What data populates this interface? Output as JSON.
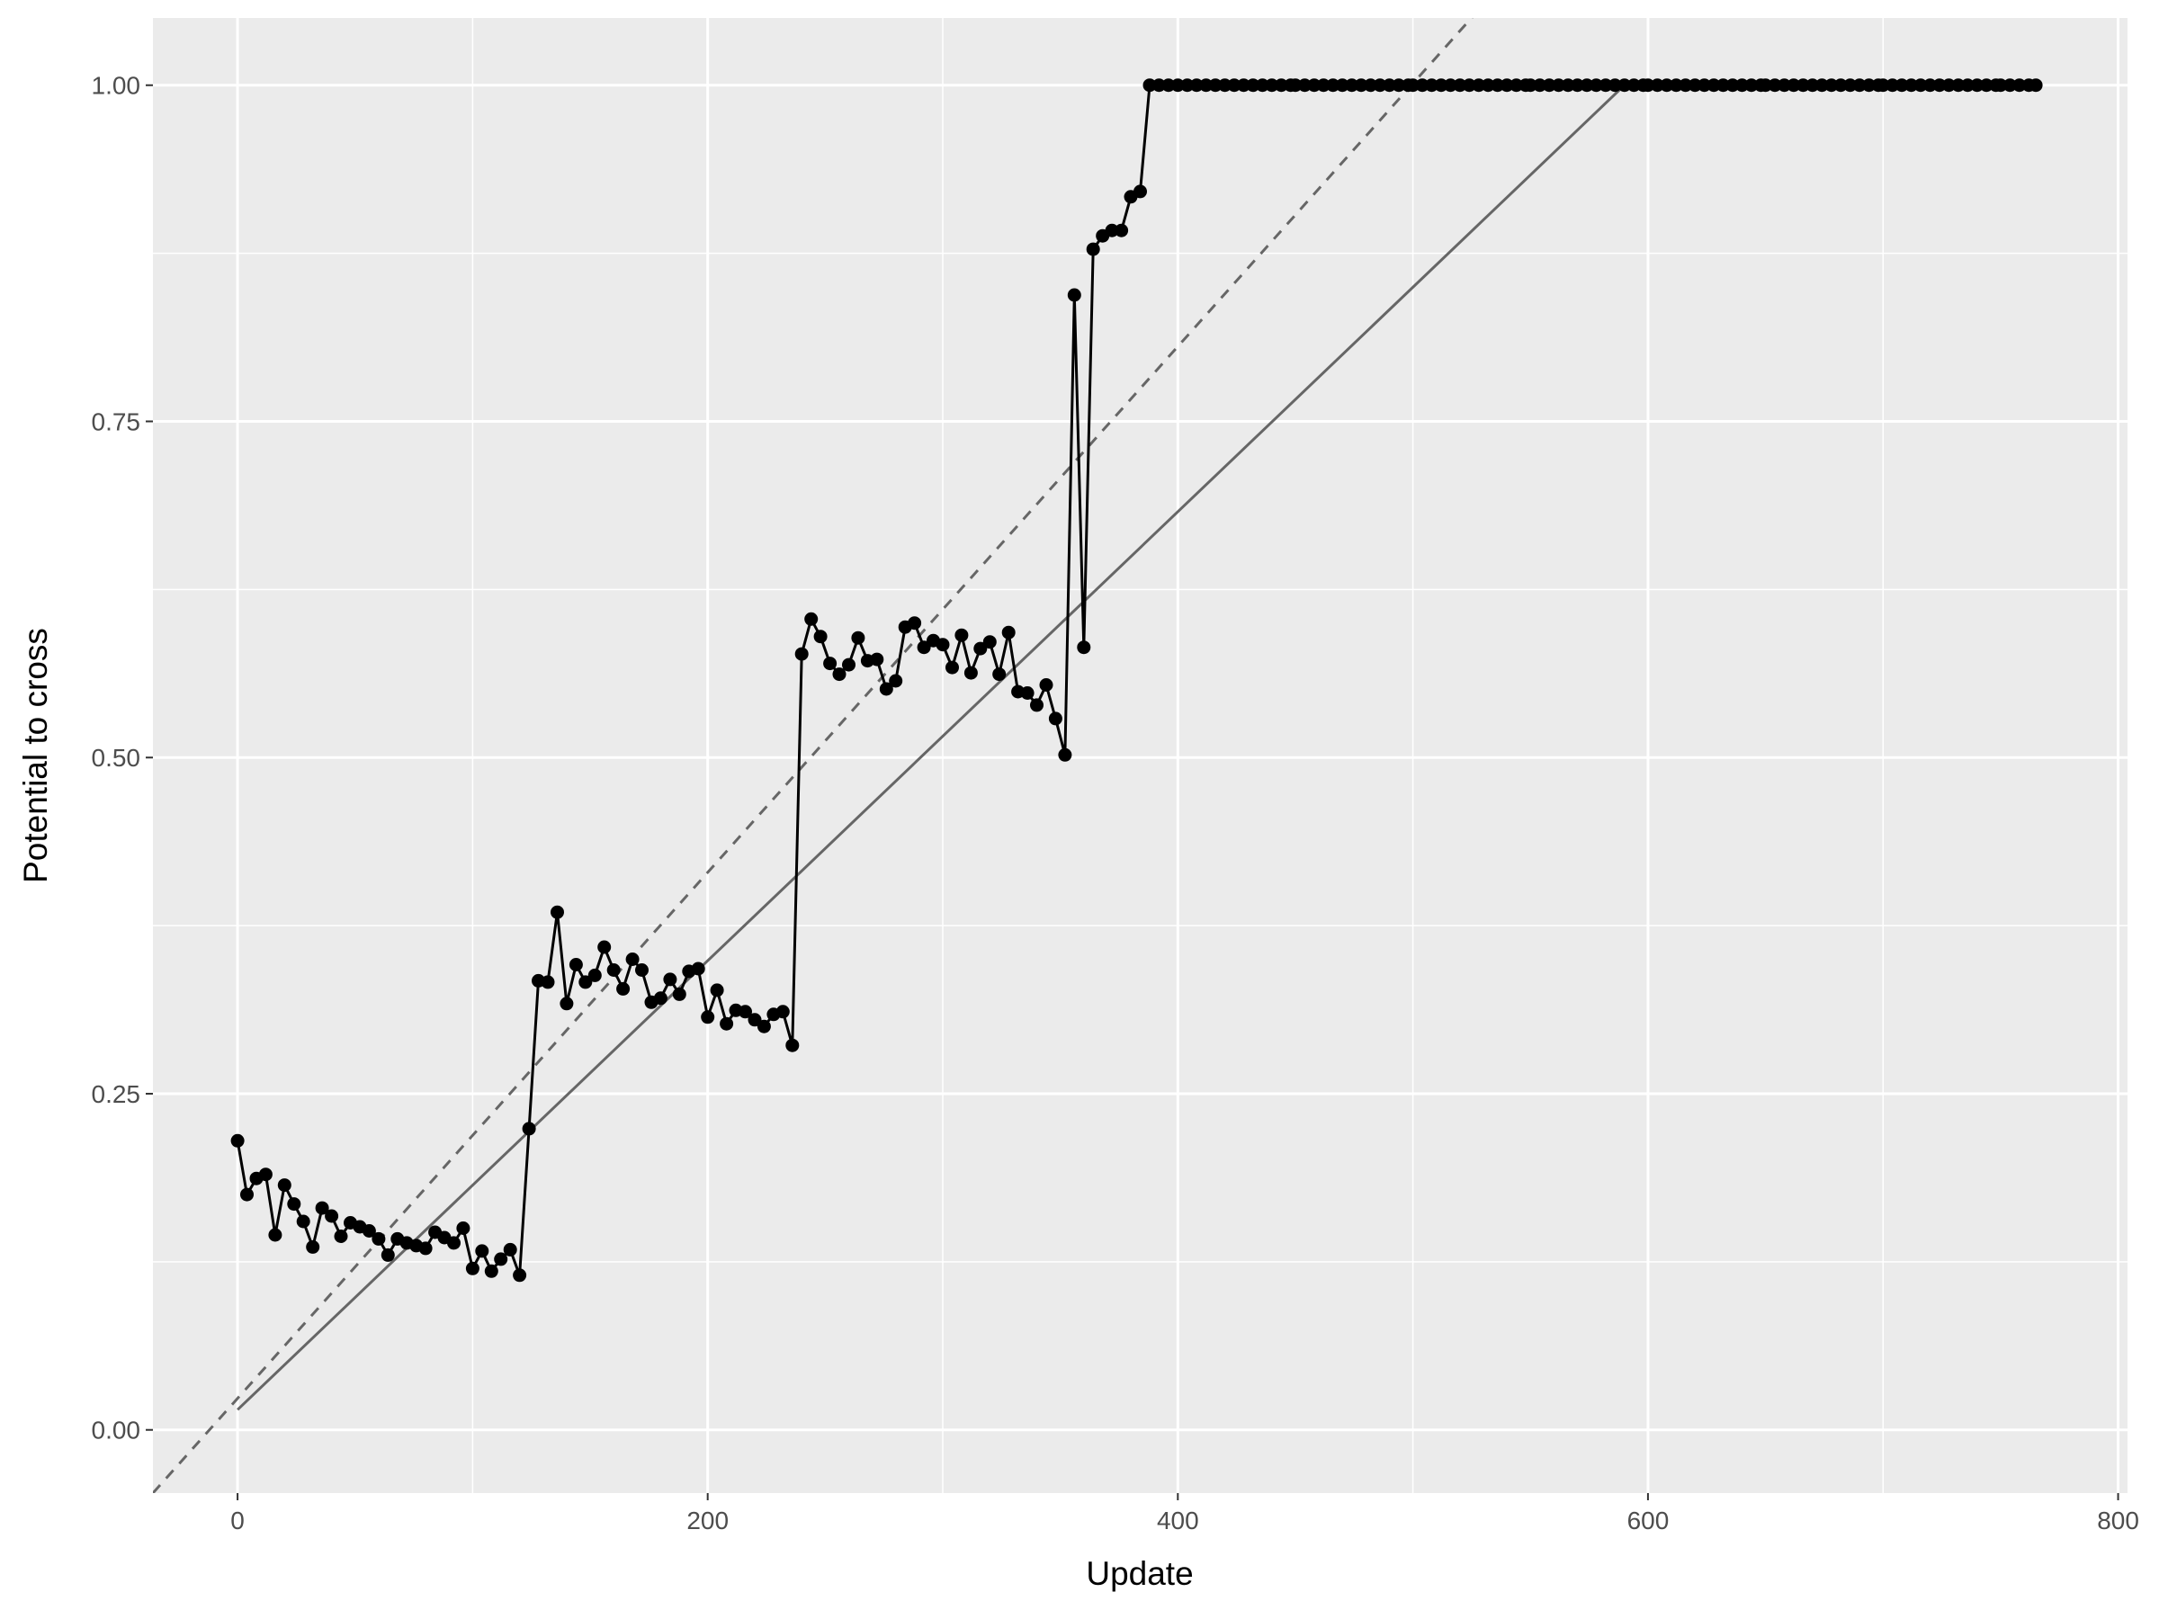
{
  "chart_data": {
    "type": "line",
    "title": "",
    "xlabel": "Update",
    "ylabel": "Potential to cross",
    "xlim": [
      -36,
      804
    ],
    "ylim": [
      -0.047,
      1.05
    ],
    "x_ticks": [
      0,
      200,
      400,
      600,
      800
    ],
    "x_tick_labels": [
      "0",
      "200",
      "400",
      "600",
      "800"
    ],
    "y_ticks": [
      0,
      0.25,
      0.5,
      0.75,
      1.0
    ],
    "y_tick_labels": [
      "0.00",
      "0.25",
      "0.50",
      "0.75",
      "1.00"
    ],
    "grid": true,
    "legend": "none",
    "colors": {
      "panel_background": "#ebebeb",
      "grid": "#ffffff",
      "main_series": "#000000",
      "reference_lines": "#666666"
    },
    "series": [
      {
        "style": "points-and-line",
        "x": [
          0,
          4,
          8,
          12,
          16,
          20,
          24,
          28,
          32,
          36,
          40,
          44,
          48,
          52,
          56,
          60,
          64,
          68,
          72,
          76,
          80,
          84,
          88,
          92,
          96,
          100,
          104,
          108,
          112,
          116,
          120,
          124,
          128,
          132,
          136,
          140,
          144,
          148,
          152,
          156,
          160,
          164,
          168,
          172,
          176,
          180,
          184,
          188,
          192,
          196,
          200,
          204,
          208,
          212,
          216,
          220,
          224,
          228,
          232,
          236,
          240,
          244,
          248,
          252,
          256,
          260,
          264,
          268,
          272,
          276,
          280,
          284,
          288,
          292,
          296,
          300,
          304,
          308,
          312,
          316,
          320,
          324,
          328,
          332,
          336,
          340,
          344,
          348,
          352,
          356,
          360,
          364,
          368,
          372,
          376,
          380,
          384,
          388,
          400,
          450,
          500,
          550,
          600,
          650,
          700,
          750,
          765
        ],
        "y": [
          0.215,
          0.175,
          0.187,
          0.19,
          0.145,
          0.182,
          0.168,
          0.155,
          0.136,
          0.165,
          0.159,
          0.144,
          0.154,
          0.151,
          0.148,
          0.142,
          0.13,
          0.142,
          0.139,
          0.137,
          0.135,
          0.147,
          0.143,
          0.139,
          0.15,
          0.12,
          0.133,
          0.118,
          0.127,
          0.134,
          0.115,
          0.224,
          0.334,
          0.333,
          0.385,
          0.317,
          0.346,
          0.333,
          0.338,
          0.359,
          0.342,
          0.328,
          0.35,
          0.342,
          0.318,
          0.321,
          0.335,
          0.324,
          0.341,
          0.343,
          0.307,
          0.327,
          0.302,
          0.312,
          0.311,
          0.305,
          0.3,
          0.309,
          0.311,
          0.286,
          0.577,
          0.603,
          0.59,
          0.57,
          0.562,
          0.569,
          0.589,
          0.572,
          0.573,
          0.551,
          0.557,
          0.597,
          0.6,
          0.582,
          0.587,
          0.584,
          0.567,
          0.591,
          0.563,
          0.581,
          0.586,
          0.562,
          0.593,
          0.549,
          0.548,
          0.539,
          0.554,
          0.529,
          0.502,
          0.844,
          0.582,
          0.878,
          0.888,
          0.892,
          0.892,
          0.917,
          0.921,
          1.0,
          1.0,
          1.0,
          1.0,
          1.0,
          1.0,
          1.0,
          1.0,
          1.0,
          1.0
        ]
      },
      {
        "style": "solid",
        "x": [
          0,
          590,
          765
        ],
        "y": [
          0.015,
          1.0,
          1.0
        ]
      },
      {
        "style": "dashed",
        "x": [
          -36,
          530
        ],
        "y": [
          -0.047,
          1.06
        ]
      }
    ]
  }
}
